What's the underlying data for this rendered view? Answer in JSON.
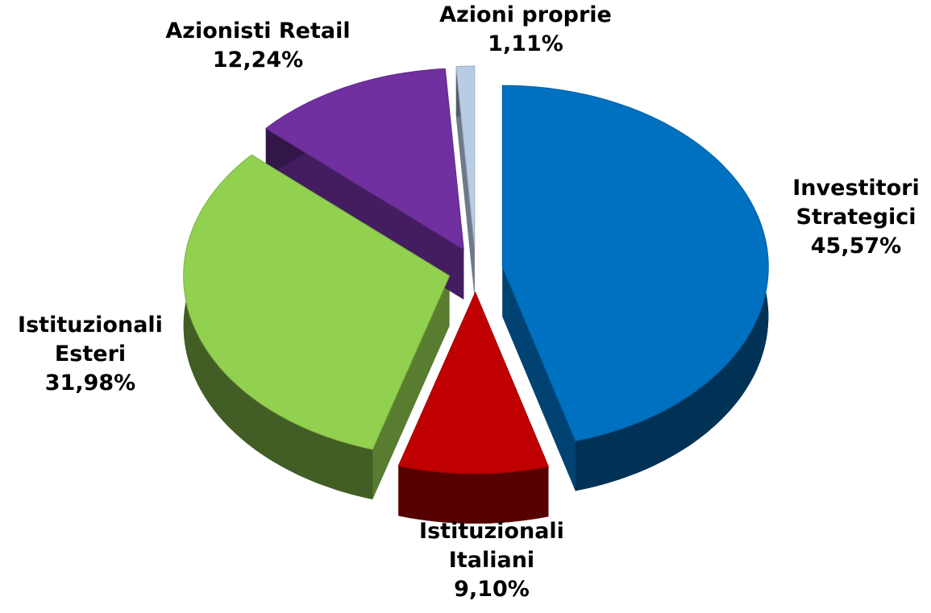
{
  "chart_data": {
    "type": "pie",
    "categories": [
      "Investitori\nStrategici",
      "Istituzionali\nItaliani",
      "Istituzionali\nEsteri",
      "Azionisti Retail",
      "Azioni proprie"
    ],
    "values": [
      45.57,
      9.1,
      31.98,
      12.24,
      1.11
    ],
    "value_labels": [
      "45,57%",
      "9,10%",
      "31,98%",
      "12,24%",
      "1,11%"
    ],
    "colors": [
      "#0070c0",
      "#c00000",
      "#92d050",
      "#7030a0",
      "#b8cce4"
    ]
  }
}
